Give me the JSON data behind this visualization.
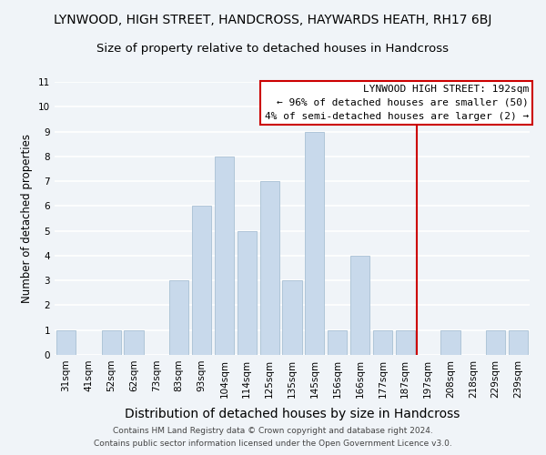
{
  "title": "LYNWOOD, HIGH STREET, HANDCROSS, HAYWARDS HEATH, RH17 6BJ",
  "subtitle": "Size of property relative to detached houses in Handcross",
  "xlabel": "Distribution of detached houses by size in Handcross",
  "ylabel": "Number of detached properties",
  "bar_labels": [
    "31sqm",
    "41sqm",
    "52sqm",
    "62sqm",
    "73sqm",
    "83sqm",
    "93sqm",
    "104sqm",
    "114sqm",
    "125sqm",
    "135sqm",
    "145sqm",
    "156sqm",
    "166sqm",
    "177sqm",
    "187sqm",
    "197sqm",
    "208sqm",
    "218sqm",
    "229sqm",
    "239sqm"
  ],
  "bar_heights": [
    1,
    0,
    1,
    1,
    0,
    3,
    6,
    8,
    5,
    7,
    3,
    9,
    1,
    4,
    1,
    1,
    0,
    1,
    0,
    1,
    1
  ],
  "bar_color": "#c8d9eb",
  "bar_edgecolor": "#a8c0d4",
  "ylim": [
    0,
    11
  ],
  "yticks": [
    0,
    1,
    2,
    3,
    4,
    5,
    6,
    7,
    8,
    9,
    10,
    11
  ],
  "annotation_title": "LYNWOOD HIGH STREET: 192sqm",
  "annotation_line1": "← 96% of detached houses are smaller (50)",
  "annotation_line2": "4% of semi-detached houses are larger (2) →",
  "footer1": "Contains HM Land Registry data © Crown copyright and database right 2024.",
  "footer2": "Contains public sector information licensed under the Open Government Licence v3.0.",
  "background_color": "#f0f4f8",
  "grid_color": "#ffffff",
  "title_fontsize": 10,
  "subtitle_fontsize": 9.5,
  "xlabel_fontsize": 10,
  "ylabel_fontsize": 8.5,
  "tick_fontsize": 7.5,
  "annotation_fontsize": 8,
  "footer_fontsize": 6.5
}
